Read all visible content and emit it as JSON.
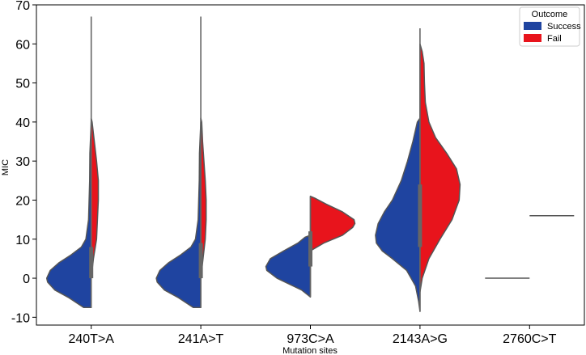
{
  "chart_data": {
    "type": "violin",
    "split": true,
    "xlabel": "Mutation sites",
    "ylabel": "MIC",
    "ylim": [
      -12,
      70
    ],
    "yticks": [
      -10,
      0,
      10,
      20,
      30,
      40,
      50,
      60,
      70
    ],
    "categories": [
      "240T>A",
      "241A>T",
      "973C>A",
      "2143A>G",
      "2760C>T"
    ],
    "legend": {
      "title": "Outcome",
      "position": "top-right",
      "entries": [
        {
          "label": "Success",
          "color": "#1f44a0"
        },
        {
          "label": "Fail",
          "color": "#e8141c"
        }
      ]
    },
    "series": [
      {
        "name": "Success",
        "color": "#1f44a0",
        "side": "left",
        "violins": [
          {
            "category": "240T>A",
            "profile": [
              [
                -7.5,
                0.17
              ],
              [
                -5,
                0.5
              ],
              [
                -3,
                0.82
              ],
              [
                -1,
                0.98
              ],
              [
                0,
                1.0
              ],
              [
                2,
                0.92
              ],
              [
                4,
                0.72
              ],
              [
                6,
                0.45
              ],
              [
                8,
                0.22
              ],
              [
                10,
                0.12
              ],
              [
                15,
                0.06
              ],
              [
                25,
                0.035
              ],
              [
                32,
                0.03
              ],
              [
                40,
                0.0
              ]
            ]
          },
          {
            "category": "241A>T",
            "profile": [
              [
                -7.5,
                0.17
              ],
              [
                -5,
                0.5
              ],
              [
                -3,
                0.82
              ],
              [
                -1,
                0.98
              ],
              [
                0,
                1.0
              ],
              [
                2,
                0.92
              ],
              [
                4,
                0.72
              ],
              [
                6,
                0.45
              ],
              [
                8,
                0.22
              ],
              [
                10,
                0.12
              ],
              [
                15,
                0.06
              ],
              [
                25,
                0.035
              ],
              [
                32,
                0.03
              ],
              [
                40,
                0.0
              ]
            ]
          },
          {
            "category": "973C>A",
            "profile": [
              [
                -4.8,
                0.0
              ],
              [
                -3,
                0.2
              ],
              [
                0,
                0.75
              ],
              [
                2,
                0.98
              ],
              [
                3,
                1.0
              ],
              [
                5,
                0.9
              ],
              [
                7,
                0.6
              ],
              [
                9,
                0.28
              ],
              [
                10.5,
                0.12
              ],
              [
                11,
                0.0
              ]
            ]
          },
          {
            "category": "2143A>G",
            "profile": [
              [
                -8.5,
                0.0
              ],
              [
                -6,
                0.03
              ],
              [
                -2,
                0.1
              ],
              [
                2,
                0.3
              ],
              [
                5,
                0.62
              ],
              [
                7,
                0.85
              ],
              [
                9,
                0.98
              ],
              [
                11,
                1.0
              ],
              [
                14,
                0.94
              ],
              [
                17,
                0.8
              ],
              [
                20,
                0.62
              ],
              [
                25,
                0.42
              ],
              [
                30,
                0.28
              ],
              [
                35,
                0.16
              ],
              [
                40,
                0.06
              ],
              [
                41,
                0.0
              ]
            ]
          },
          {
            "category": "2760C>T",
            "profile": [
              [
                0,
                1.0
              ]
            ]
          }
        ]
      },
      {
        "name": "Fail",
        "color": "#e8141c",
        "side": "right",
        "violins": [
          {
            "category": "240T>A",
            "profile": [
              [
                0,
                0.0
              ],
              [
                5,
                0.05
              ],
              [
                10,
                0.12
              ],
              [
                15,
                0.14
              ],
              [
                20,
                0.16
              ],
              [
                25,
                0.16
              ],
              [
                30,
                0.12
              ],
              [
                35,
                0.07
              ],
              [
                40,
                0.02
              ],
              [
                41,
                0.0
              ]
            ]
          },
          {
            "category": "241A>T",
            "profile": [
              [
                0,
                0.0
              ],
              [
                5,
                0.05
              ],
              [
                10,
                0.1
              ],
              [
                15,
                0.12
              ],
              [
                20,
                0.12
              ],
              [
                25,
                0.1
              ],
              [
                30,
                0.07
              ],
              [
                35,
                0.04
              ],
              [
                40,
                0.02
              ],
              [
                41,
                0.0
              ]
            ]
          },
          {
            "category": "973C>A",
            "profile": [
              [
                7,
                0.0
              ],
              [
                9,
                0.3
              ],
              [
                11,
                0.72
              ],
              [
                13,
                0.95
              ],
              [
                14,
                1.0
              ],
              [
                15,
                0.98
              ],
              [
                17,
                0.72
              ],
              [
                19,
                0.35
              ],
              [
                20.5,
                0.1
              ],
              [
                21,
                0.0
              ]
            ]
          },
          {
            "category": "2143A>G",
            "profile": [
              [
                -3.5,
                0.0
              ],
              [
                0,
                0.05
              ],
              [
                5,
                0.2
              ],
              [
                10,
                0.45
              ],
              [
                15,
                0.72
              ],
              [
                20,
                0.88
              ],
              [
                24,
                0.9
              ],
              [
                28,
                0.82
              ],
              [
                32,
                0.6
              ],
              [
                36,
                0.35
              ],
              [
                40,
                0.2
              ],
              [
                45,
                0.12
              ],
              [
                50,
                0.1
              ],
              [
                55,
                0.09
              ],
              [
                58,
                0.05
              ],
              [
                60,
                0.0
              ]
            ]
          },
          {
            "category": "2760C>T",
            "profile": [
              [
                16,
                1.0
              ]
            ]
          }
        ]
      }
    ],
    "whiskers": [
      {
        "category": "240T>A",
        "low": -7.5,
        "high": 67,
        "q1": 0,
        "q3": 8
      },
      {
        "category": "241A>T",
        "low": -7.5,
        "high": 67,
        "q1": 0,
        "q3": 9
      },
      {
        "category": "973C>A",
        "low": -4.8,
        "high": 21,
        "q1": 3,
        "q3": 12
      },
      {
        "category": "2143A>G",
        "low": -8.5,
        "high": 64,
        "q1": 8,
        "q3": 24
      },
      {
        "category": "2760C>T",
        "low": 0,
        "high": 0,
        "q1": 0,
        "q3": 0
      }
    ],
    "grid": false
  }
}
